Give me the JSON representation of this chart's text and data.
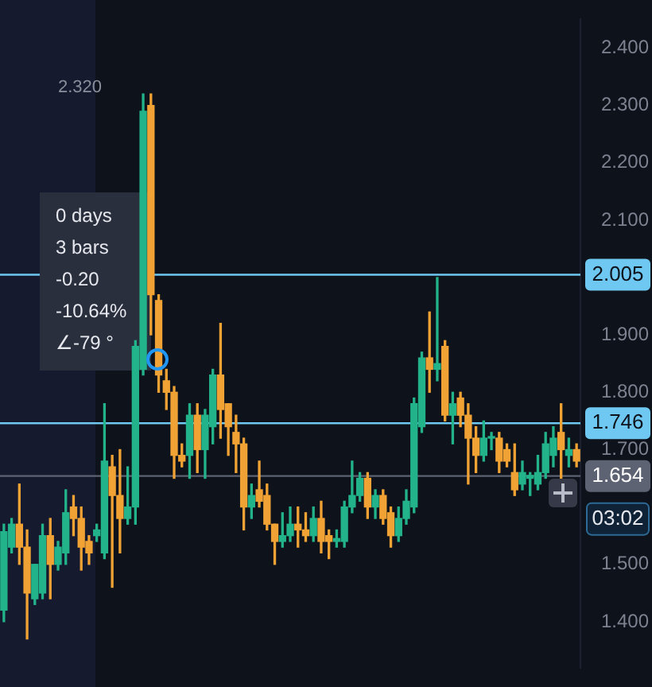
{
  "chart_data": {
    "type": "candlestick",
    "categories": [
      null,
      null,
      null,
      null,
      null,
      null,
      null,
      null,
      null,
      null,
      null,
      null,
      null,
      null,
      null,
      null,
      null,
      null,
      null,
      null,
      null,
      null,
      null,
      null,
      null,
      null,
      null,
      null,
      null,
      null,
      null,
      null,
      null,
      null,
      null,
      null,
      null,
      null,
      null,
      null,
      null,
      null,
      null,
      null,
      null,
      null,
      null,
      null,
      null,
      null,
      null,
      null,
      null,
      null,
      null,
      null,
      null,
      null,
      null,
      null,
      null,
      null,
      null,
      null,
      null,
      null,
      null,
      null,
      null,
      null,
      null,
      null,
      null,
      null,
      null
    ],
    "ohlc": [
      [
        1.42,
        1.57,
        1.4,
        1.557
      ],
      [
        1.53,
        1.58,
        1.52,
        1.57
      ],
      [
        1.57,
        1.64,
        1.5,
        1.53
      ],
      [
        1.53,
        1.56,
        1.37,
        1.45
      ],
      [
        1.44,
        1.5,
        1.43,
        1.5
      ],
      [
        1.45,
        1.57,
        1.44,
        1.55
      ],
      [
        1.55,
        1.58,
        1.44,
        1.5
      ],
      [
        1.5,
        1.54,
        1.49,
        1.53
      ],
      [
        1.52,
        1.63,
        1.5,
        1.59
      ],
      [
        1.6,
        1.62,
        1.55,
        1.58
      ],
      [
        1.58,
        1.6,
        1.49,
        1.53
      ],
      [
        1.54,
        1.55,
        1.5,
        1.52
      ],
      [
        1.55,
        1.57,
        1.54,
        1.56
      ],
      [
        1.52,
        1.78,
        1.51,
        1.68
      ],
      [
        1.67,
        1.69,
        1.46,
        1.62
      ],
      [
        1.62,
        1.7,
        1.52,
        1.58
      ],
      [
        1.58,
        1.67,
        1.57,
        1.6
      ],
      [
        1.6,
        1.89,
        1.57,
        1.88
      ],
      [
        1.84,
        2.32,
        1.83,
        2.29
      ],
      [
        2.3,
        2.32,
        1.9,
        1.97
      ],
      [
        1.96,
        1.97,
        1.8,
        1.83
      ],
      [
        1.82,
        1.84,
        1.77,
        1.8
      ],
      [
        1.8,
        1.81,
        1.65,
        1.69
      ],
      [
        1.69,
        1.71,
        1.67,
        1.68
      ],
      [
        1.69,
        1.78,
        1.65,
        1.76
      ],
      [
        1.76,
        1.78,
        1.66,
        1.7
      ],
      [
        1.7,
        1.77,
        1.65,
        1.76
      ],
      [
        1.74,
        1.84,
        1.71,
        1.83
      ],
      [
        1.83,
        1.92,
        1.72,
        1.77
      ],
      [
        1.78,
        1.78,
        1.69,
        1.74
      ],
      [
        1.73,
        1.76,
        1.66,
        1.71
      ],
      [
        1.71,
        1.72,
        1.56,
        1.6
      ],
      [
        1.6,
        1.64,
        1.58,
        1.62
      ],
      [
        1.63,
        1.68,
        1.6,
        1.61
      ],
      [
        1.62,
        1.64,
        1.56,
        1.57
      ],
      [
        1.57,
        1.57,
        1.5,
        1.54
      ],
      [
        1.54,
        1.59,
        1.53,
        1.55
      ],
      [
        1.55,
        1.6,
        1.54,
        1.57
      ],
      [
        1.57,
        1.6,
        1.53,
        1.56
      ],
      [
        1.56,
        1.59,
        1.54,
        1.55
      ],
      [
        1.55,
        1.6,
        1.54,
        1.58
      ],
      [
        1.58,
        1.61,
        1.52,
        1.54
      ],
      [
        1.55,
        1.56,
        1.51,
        1.54
      ],
      [
        1.54,
        1.56,
        1.53,
        1.545
      ],
      [
        1.54,
        1.61,
        1.53,
        1.6
      ],
      [
        1.6,
        1.68,
        1.59,
        1.62
      ],
      [
        1.62,
        1.66,
        1.61,
        1.65
      ],
      [
        1.65,
        1.66,
        1.58,
        1.6
      ],
      [
        1.6,
        1.63,
        1.58,
        1.62
      ],
      [
        1.62,
        1.63,
        1.57,
        1.58
      ],
      [
        1.59,
        1.6,
        1.53,
        1.55
      ],
      [
        1.55,
        1.6,
        1.54,
        1.58
      ],
      [
        1.58,
        1.63,
        1.57,
        1.61
      ],
      [
        1.6,
        1.79,
        1.59,
        1.78
      ],
      [
        1.74,
        1.87,
        1.73,
        1.86
      ],
      [
        1.86,
        1.94,
        1.8,
        1.84
      ],
      [
        1.84,
        2.0,
        1.82,
        1.85
      ],
      [
        1.88,
        1.89,
        1.75,
        1.76
      ],
      [
        1.76,
        1.8,
        1.71,
        1.78
      ],
      [
        1.79,
        1.8,
        1.74,
        1.76
      ],
      [
        1.76,
        1.78,
        1.64,
        1.72
      ],
      [
        1.72,
        1.74,
        1.66,
        1.69
      ],
      [
        1.69,
        1.75,
        1.68,
        1.72
      ],
      [
        1.72,
        1.73,
        1.7,
        1.72
      ],
      [
        1.72,
        1.73,
        1.66,
        1.68
      ],
      [
        1.7,
        1.71,
        1.67,
        1.68
      ],
      [
        1.66,
        1.71,
        1.62,
        1.63
      ],
      [
        1.64,
        1.68,
        1.63,
        1.66
      ],
      [
        1.65,
        1.66,
        1.62,
        1.655
      ],
      [
        1.64,
        1.69,
        1.63,
        1.66
      ],
      [
        1.66,
        1.73,
        1.65,
        1.71
      ],
      [
        1.69,
        1.74,
        1.67,
        1.72
      ],
      [
        1.73,
        1.78,
        1.65,
        1.7
      ],
      [
        1.69,
        1.72,
        1.67,
        1.7
      ],
      [
        1.7,
        1.71,
        1.67,
        1.68
      ]
    ],
    "colors": [
      "#22b38a",
      "#22b38a",
      "#f0a334",
      "#f0a334",
      "#22b38a",
      "#22b38a",
      "#f0a334",
      "#22b38a",
      "#22b38a",
      "#f0a334",
      "#f0a334",
      "#f0a334",
      "#22b38a",
      "#22b38a",
      "#f0a334",
      "#f0a334",
      "#22b38a",
      "#22b38a",
      "#22b38a",
      "#f0a334",
      "#f0a334",
      "#f0a334",
      "#f0a334",
      "#f0a334",
      "#22b38a",
      "#f0a334",
      "#22b38a",
      "#22b38a",
      "#f0a334",
      "#f0a334",
      "#f0a334",
      "#f0a334",
      "#22b38a",
      "#f0a334",
      "#f0a334",
      "#f0a334",
      "#22b38a",
      "#22b38a",
      "#f0a334",
      "#f0a334",
      "#22b38a",
      "#f0a334",
      "#f0a334",
      "#22b38a",
      "#22b38a",
      "#22b38a",
      "#22b38a",
      "#f0a334",
      "#22b38a",
      "#f0a334",
      "#f0a334",
      "#22b38a",
      "#22b38a",
      "#22b38a",
      "#22b38a",
      "#f0a334",
      "#22b38a",
      "#f0a334",
      "#22b38a",
      "#f0a334",
      "#f0a334",
      "#f0a334",
      "#22b38a",
      "#22b38a",
      "#f0a334",
      "#f0a334",
      "#f0a334",
      "#22b38a",
      "#22b38a",
      "#22b38a",
      "#22b38a",
      "#22b38a",
      "#f0a334",
      "#22b38a",
      "#f0a334"
    ],
    "ylim": [
      1.32,
      2.45
    ],
    "yticks": [
      {
        "value": 1.4,
        "label": "1.400"
      },
      {
        "value": 1.5,
        "label": "1.500"
      },
      {
        "value": 1.7,
        "label": "1.700"
      },
      {
        "value": 1.8,
        "label": "1.800"
      },
      {
        "value": 1.9,
        "label": "1.900"
      },
      {
        "value": 2.1,
        "label": "2.100"
      },
      {
        "value": 2.2,
        "label": "2.200"
      },
      {
        "value": 2.3,
        "label": "2.300"
      },
      {
        "value": 2.4,
        "label": "2.400"
      }
    ],
    "tick_labels": "y",
    "legend": false,
    "ref_lines": [
      {
        "axis": "y",
        "value": 2.005,
        "label": "2.005",
        "color": "#6ec8f2"
      },
      {
        "axis": "y",
        "value": 1.746,
        "label": "1.746",
        "color": "#6ec8f2"
      },
      {
        "axis": "y",
        "value": 1.654,
        "label": "1.654",
        "color": "#5d6372"
      }
    ],
    "annotations": [
      "0 days",
      "3 bars",
      "-0.20",
      "-10.64%",
      "∠-79 °",
      "2.320",
      "03:02"
    ]
  }
}
